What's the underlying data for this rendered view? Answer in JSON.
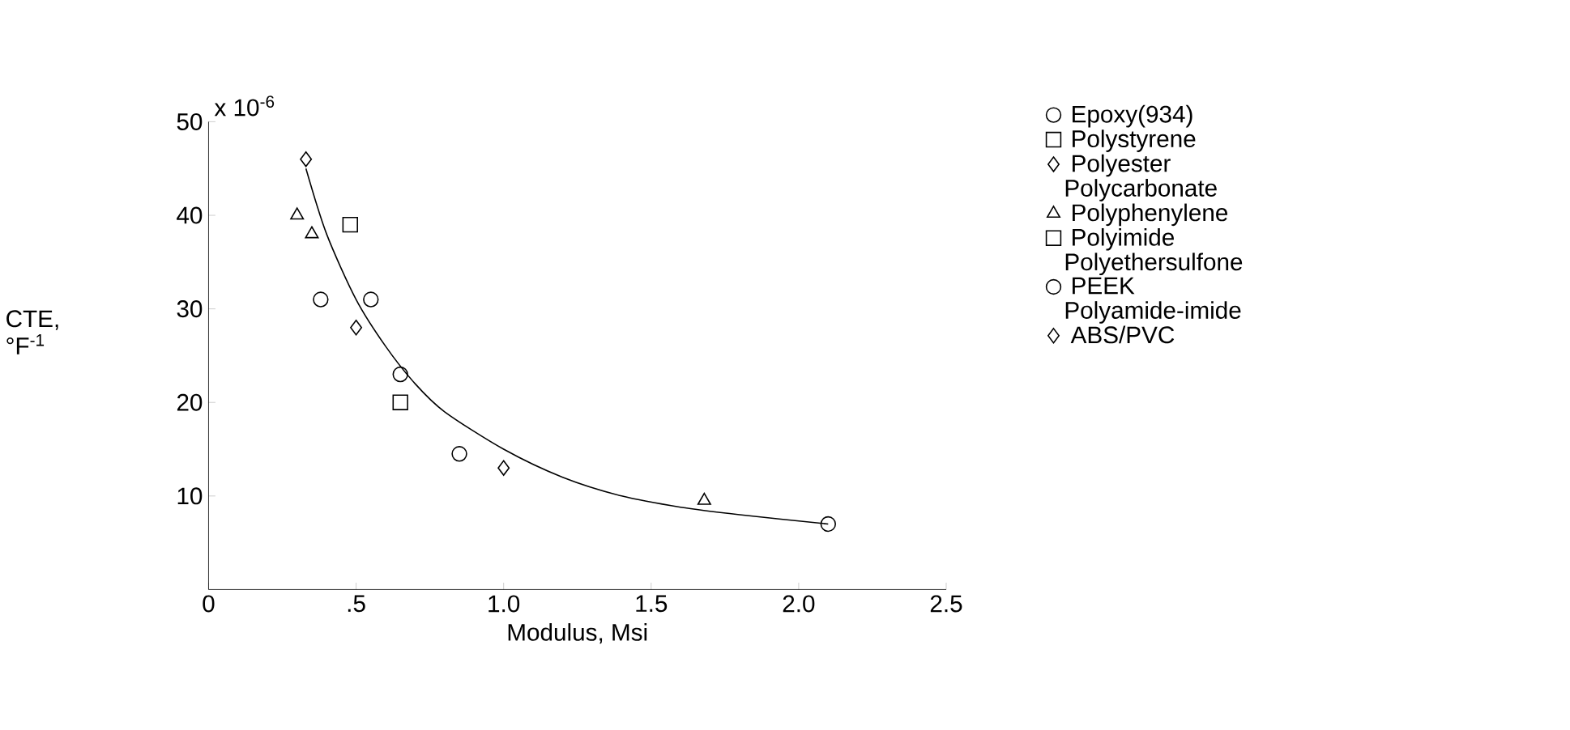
{
  "chart_data": {
    "type": "scatter",
    "xlabel": "Modulus, Msi",
    "ylabel": "CTE, °F$^{-1}$",
    "annotations": [
      "x 10$^{-6}$",
      "Polycarbonate",
      "Polyethersulfone",
      "Polyamide-imide"
    ],
    "xlim": [
      0,
      2.5
    ],
    "ylim": [
      0,
      50
    ],
    "xticks": [
      0,
      {
        "value": 0.5,
        "label": ".5"
      },
      {
        "value": 1.0,
        "label": "1.0"
      },
      {
        "value": 1.5,
        "label": "1.5"
      },
      {
        "value": 2.0,
        "label": "2.0"
      },
      {
        "value": 2.5,
        "label": "2.5"
      }
    ],
    "yticks": [
      10,
      20,
      30,
      40,
      50
    ],
    "grid": false,
    "legend": "right",
    "series": [
      {
        "name": "Epoxy(934)",
        "color": "#000000",
        "marker": "circle",
        "x": [
          0.65
        ],
        "values": [
          23
        ]
      },
      {
        "name": "Polystyrene",
        "color": "#000000",
        "marker": "square",
        "x": [
          0.48
        ],
        "values": [
          39
        ]
      },
      {
        "name": "Polyester",
        "color": "#000000",
        "marker": "diamond",
        "x": [
          1.0
        ],
        "values": [
          13
        ]
      },
      {
        "color": "#000000",
        "marker": "triangle",
        "x": [
          0.35
        ],
        "values": [
          38
        ]
      },
      {
        "color": "#000000",
        "marker": "triangle",
        "x": [
          1.68
        ],
        "values": [
          9.5
        ]
      },
      {
        "name": "Polyphenylene",
        "color": "#000000",
        "marker": "triangle",
        "x": [
          0.3
        ],
        "values": [
          40
        ]
      },
      {
        "name": "Polyimide",
        "color": "#000000",
        "marker": "square",
        "x": [
          0.65
        ],
        "values": [
          20
        ]
      },
      {
        "color": "#000000",
        "marker": "circle",
        "x": [
          0.38
        ],
        "values": [
          31
        ]
      },
      {
        "color": "#000000",
        "marker": "circle",
        "x": [
          0.85
        ],
        "values": [
          14.5
        ]
      },
      {
        "name": "PEEK",
        "color": "#000000",
        "marker": "circle",
        "x": [
          0.55
        ],
        "values": [
          31
        ]
      },
      {
        "color": "#000000",
        "marker": "diamond",
        "x": [
          0.5
        ],
        "values": [
          28
        ]
      },
      {
        "color": "#000000",
        "marker": "circle",
        "x": [
          2.1
        ],
        "values": [
          7
        ]
      },
      {
        "name": "ABS/PVC",
        "color": "#000000",
        "marker": "diamond",
        "x": [
          0.33
        ],
        "values": [
          46
        ]
      },
      {
        "type": "line",
        "color": "#000000",
        "marker": "none",
        "x": [
          0.33,
          0.4,
          0.5,
          0.6,
          0.7,
          0.8,
          1.0,
          1.2,
          1.4,
          1.6,
          1.8,
          2.1
        ],
        "values": [
          45,
          38,
          31,
          26,
          22,
          19,
          15,
          12,
          10,
          8.8,
          8,
          7
        ]
      }
    ]
  }
}
